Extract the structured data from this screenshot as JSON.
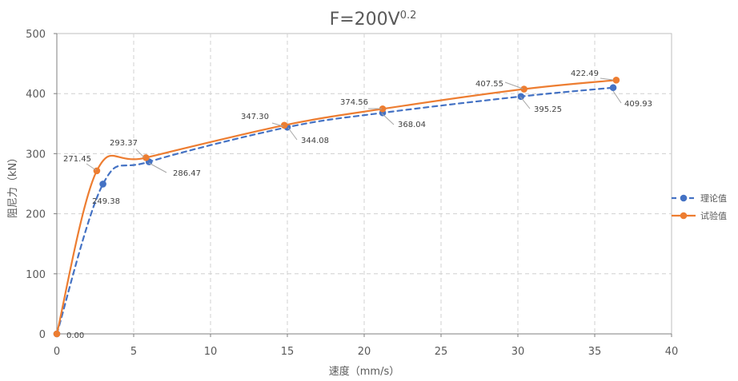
{
  "chart_data": {
    "type": "line",
    "title": {
      "base": "F=200V",
      "superscript": "0.2"
    },
    "xlabel": "速度（mm/s）",
    "ylabel": "阻尼力（kN）",
    "xlim": [
      0,
      40
    ],
    "ylim": [
      0,
      500
    ],
    "x_ticks": [
      0,
      5,
      10,
      15,
      20,
      25,
      30,
      35,
      40
    ],
    "y_ticks": [
      0,
      100,
      200,
      300,
      400,
      500
    ],
    "grid": true,
    "legend_position": "right",
    "series": [
      {
        "name": "理论值",
        "color": "#4472C4",
        "line_style": "dashed",
        "marker": "circle",
        "points": [
          {
            "x": 0,
            "y": 0,
            "label": "0.00"
          },
          {
            "x": 3.0,
            "y": 249.38,
            "label": "249.38"
          },
          {
            "x": 6.0,
            "y": 286.47,
            "label": "286.47"
          },
          {
            "x": 15.0,
            "y": 344.08,
            "label": "344.08"
          },
          {
            "x": 21.2,
            "y": 368.04,
            "label": "368.04"
          },
          {
            "x": 30.2,
            "y": 395.25,
            "label": "395.25"
          },
          {
            "x": 36.2,
            "y": 409.93,
            "label": "409.93"
          }
        ]
      },
      {
        "name": "试验值",
        "color": "#ED7D31",
        "line_style": "solid",
        "marker": "circle",
        "points": [
          {
            "x": 0,
            "y": 0,
            "label": ""
          },
          {
            "x": 2.6,
            "y": 271.45,
            "label": "271.45"
          },
          {
            "x": 5.8,
            "y": 293.37,
            "label": "293.37"
          },
          {
            "x": 14.8,
            "y": 347.3,
            "label": "347.30"
          },
          {
            "x": 21.2,
            "y": 374.56,
            "label": "374.56"
          },
          {
            "x": 30.4,
            "y": 407.55,
            "label": "407.55"
          },
          {
            "x": 36.4,
            "y": 422.49,
            "label": "422.49"
          }
        ]
      }
    ]
  }
}
